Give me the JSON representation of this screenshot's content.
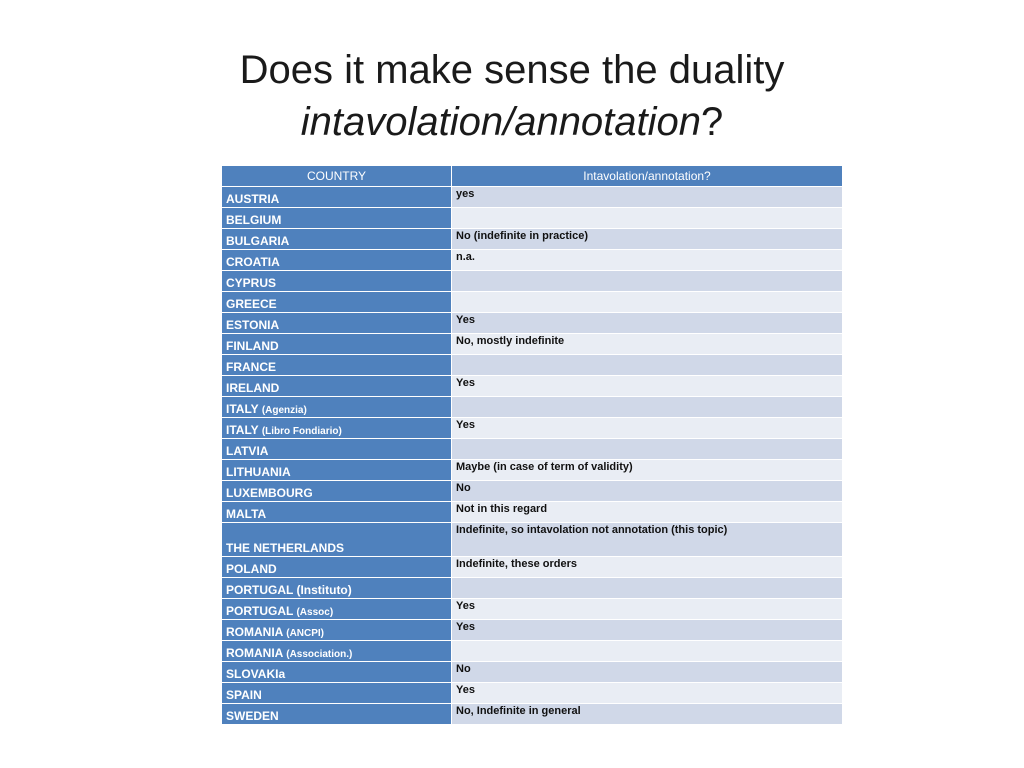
{
  "title": {
    "line1": "Does it make sense the duality",
    "line2_italic": "intavolation/annotation",
    "line2_suffix": "?"
  },
  "table": {
    "headers": [
      "COUNTRY",
      "Intavolation/annotation?"
    ],
    "rows": [
      {
        "country": "AUSTRIA",
        "sub": "",
        "answer": "yes"
      },
      {
        "country": "BELGIUM",
        "sub": "",
        "answer": ""
      },
      {
        "country": "BULGARIA",
        "sub": "",
        "answer": "No (indefinite in practice)"
      },
      {
        "country": "CROATIA",
        "sub": "",
        "answer": "n.a."
      },
      {
        "country": "CYPRUS",
        "sub": "",
        "answer": ""
      },
      {
        "country": "GREECE",
        "sub": "",
        "answer": ""
      },
      {
        "country": "ESTONIA",
        "sub": "",
        "answer": "Yes"
      },
      {
        "country": "FINLAND",
        "sub": "",
        "answer": "No, mostly indefinite"
      },
      {
        "country": "FRANCE",
        "sub": "",
        "answer": ""
      },
      {
        "country": "IRELAND",
        "sub": "",
        "answer": "Yes"
      },
      {
        "country": "ITALY",
        "sub": "(Agenzia)",
        "answer": ""
      },
      {
        "country": "ITALY",
        "sub": "(Libro Fondiario)",
        "answer": "Yes"
      },
      {
        "country": "LATVIA",
        "sub": "",
        "answer": ""
      },
      {
        "country": "LITHUANIA",
        "sub": "",
        "answer": "Maybe (in case of term of validity)"
      },
      {
        "country": "LUXEMBOURG",
        "sub": "",
        "answer": "No"
      },
      {
        "country": "MALTA",
        "sub": "",
        "answer": "Not in this regard"
      },
      {
        "country": "THE NETHERLANDS",
        "sub": "",
        "answer": "Indefinite, so intavolation not annotation (this topic)",
        "tall": true
      },
      {
        "country": "POLAND",
        "sub": "",
        "answer": "Indefinite, these orders"
      },
      {
        "country": "PORTUGAL (Instituto)",
        "sub": "",
        "answer": ""
      },
      {
        "country": "PORTUGAL",
        "sub": "(Assoc)",
        "answer": "Yes"
      },
      {
        "country": "ROMANIA",
        "sub": "(ANCPI)",
        "answer": "Yes"
      },
      {
        "country": "ROMANIA",
        "sub": "(Association.)",
        "answer": ""
      },
      {
        "country": "SLOVAKIa",
        "sub": "",
        "answer": "No"
      },
      {
        "country": "SPAIN",
        "sub": "",
        "answer": "Yes"
      },
      {
        "country": "SWEDEN",
        "sub": "",
        "answer": "No, Indefinite in general"
      }
    ]
  }
}
